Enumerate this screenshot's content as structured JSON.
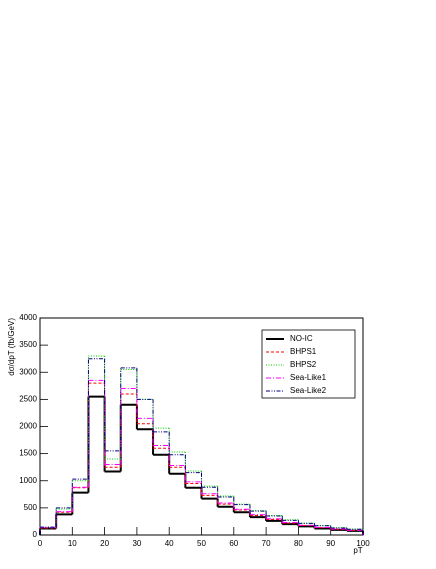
{
  "chart_data": {
    "type": "histogram",
    "xlabel": "pT",
    "ylabel": "dσ/dpT (fb/GeV)",
    "bins": [
      0,
      5,
      10,
      15,
      20,
      25,
      30,
      35,
      40,
      45,
      50,
      55,
      60,
      65,
      70,
      75,
      80,
      85,
      90,
      95,
      100
    ],
    "xlim": [
      0,
      100
    ],
    "xticks": [
      0,
      10,
      20,
      30,
      40,
      50,
      60,
      70,
      80,
      90,
      100
    ],
    "ylim": [
      0,
      4000
    ],
    "yticks": [
      0,
      500,
      1000,
      1500,
      2000,
      2500,
      3000,
      3500,
      4000
    ],
    "legend": "upper right",
    "series": [
      {
        "name": "NO-IC",
        "color": "#000000",
        "dash": "none",
        "values": [
          120,
          380,
          780,
          2550,
          1170,
          2400,
          1950,
          1480,
          1130,
          870,
          670,
          520,
          420,
          330,
          260,
          200,
          160,
          120,
          95,
          75
        ]
      },
      {
        "name": "BHPS1",
        "color": "#ff0000",
        "dash": "3,2",
        "values": [
          130,
          420,
          870,
          2800,
          1250,
          2600,
          2050,
          1600,
          1250,
          950,
          730,
          570,
          460,
          360,
          285,
          220,
          175,
          135,
          105,
          85
        ]
      },
      {
        "name": "BHPS2",
        "color": "#00cc00",
        "dash": "1,1.5",
        "values": [
          140,
          480,
          1000,
          3300,
          1400,
          3050,
          2500,
          1970,
          1530,
          1180,
          900,
          720,
          570,
          450,
          360,
          280,
          220,
          175,
          135,
          110
        ]
      },
      {
        "name": "Sea-Like1",
        "color": "#ff00ff",
        "dash": "5,2,1,2",
        "values": [
          135,
          430,
          880,
          2850,
          1300,
          2700,
          2150,
          1650,
          1280,
          980,
          760,
          590,
          475,
          375,
          300,
          230,
          180,
          140,
          110,
          88
        ]
      },
      {
        "name": "Sea-Like2",
        "color": "#00007f",
        "dash": "4,1.5,1,1.5,1,1.5",
        "values": [
          145,
          500,
          1030,
          3250,
          1550,
          3080,
          2500,
          1900,
          1480,
          1150,
          880,
          700,
          560,
          440,
          350,
          270,
          215,
          170,
          130,
          105
        ]
      }
    ]
  }
}
